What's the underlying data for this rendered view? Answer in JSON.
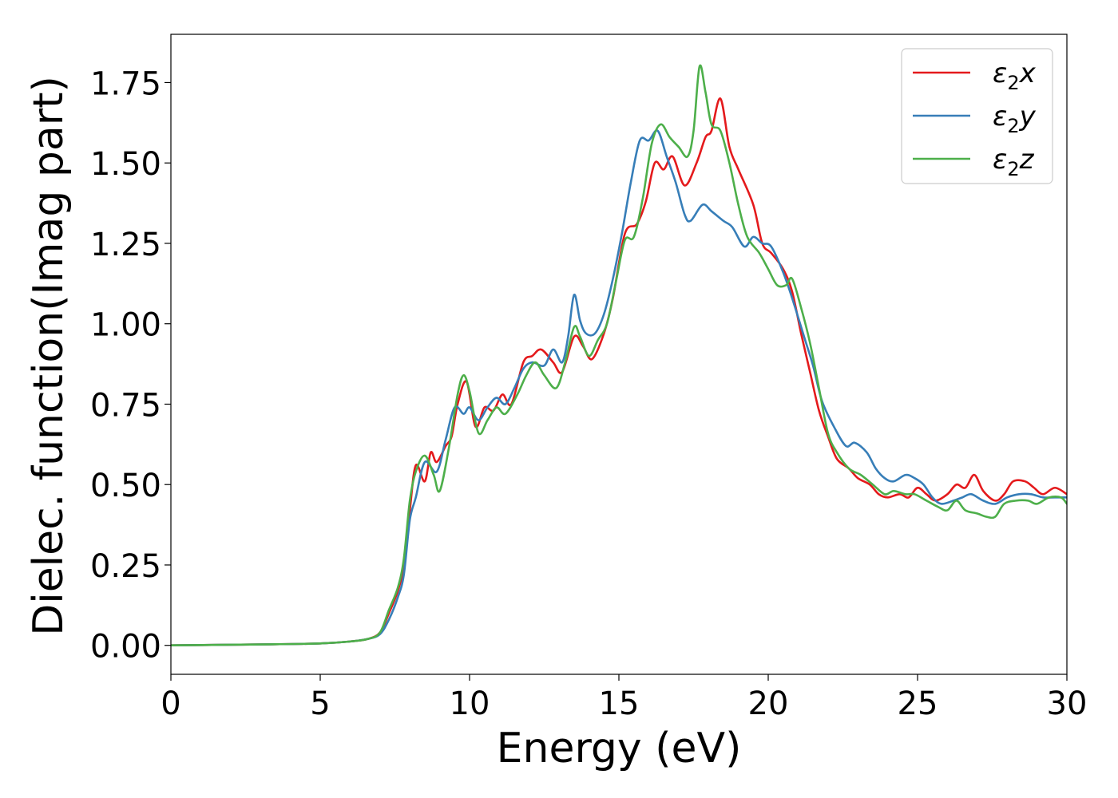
{
  "chart_data": {
    "type": "line",
    "title": "",
    "xlabel": "Energy (eV)",
    "ylabel": "Dielec. function(Imag part)",
    "xlim": [
      0,
      30
    ],
    "ylim": [
      -0.09,
      1.9
    ],
    "xticks": [
      0,
      5,
      10,
      15,
      20,
      25,
      30
    ],
    "xtick_labels": [
      "0",
      "5",
      "10",
      "15",
      "20",
      "25",
      "30"
    ],
    "yticks": [
      0,
      0.25,
      0.5,
      0.75,
      1.0,
      1.25,
      1.5,
      1.75
    ],
    "ytick_labels": [
      "0.00",
      "0.25",
      "0.50",
      "0.75",
      "1.00",
      "1.25",
      "1.50",
      "1.75"
    ],
    "grid": false,
    "legend_position": "top-right",
    "series": [
      {
        "name": "ε₂x",
        "legend": {
          "base": "ε",
          "sub": "2",
          "var": "x"
        },
        "color": "#e41a1c",
        "points": [
          [
            0,
            0.0
          ],
          [
            3,
            0.003
          ],
          [
            5,
            0.006
          ],
          [
            6,
            0.012
          ],
          [
            6.6,
            0.02
          ],
          [
            7,
            0.04
          ],
          [
            7.3,
            0.1
          ],
          [
            7.6,
            0.17
          ],
          [
            7.8,
            0.25
          ],
          [
            8.0,
            0.42
          ],
          [
            8.2,
            0.56
          ],
          [
            8.5,
            0.51
          ],
          [
            8.7,
            0.6
          ],
          [
            8.9,
            0.57
          ],
          [
            9.2,
            0.62
          ],
          [
            9.4,
            0.65
          ],
          [
            9.6,
            0.75
          ],
          [
            9.9,
            0.82
          ],
          [
            10.2,
            0.68
          ],
          [
            10.5,
            0.74
          ],
          [
            10.8,
            0.73
          ],
          [
            11.1,
            0.78
          ],
          [
            11.4,
            0.75
          ],
          [
            11.8,
            0.88
          ],
          [
            12.1,
            0.9
          ],
          [
            12.4,
            0.92
          ],
          [
            12.8,
            0.88
          ],
          [
            13.1,
            0.85
          ],
          [
            13.5,
            0.96
          ],
          [
            13.8,
            0.93
          ],
          [
            14.1,
            0.89
          ],
          [
            14.5,
            0.97
          ],
          [
            14.8,
            1.08
          ],
          [
            15.2,
            1.28
          ],
          [
            15.6,
            1.31
          ],
          [
            15.9,
            1.38
          ],
          [
            16.2,
            1.5
          ],
          [
            16.5,
            1.48
          ],
          [
            16.8,
            1.52
          ],
          [
            17.2,
            1.43
          ],
          [
            17.6,
            1.5
          ],
          [
            17.9,
            1.58
          ],
          [
            18.1,
            1.6
          ],
          [
            18.4,
            1.7
          ],
          [
            18.7,
            1.55
          ],
          [
            19.0,
            1.48
          ],
          [
            19.5,
            1.37
          ],
          [
            19.8,
            1.25
          ],
          [
            20.1,
            1.22
          ],
          [
            20.5,
            1.17
          ],
          [
            20.8,
            1.1
          ],
          [
            21.1,
            0.97
          ],
          [
            21.4,
            0.85
          ],
          [
            21.7,
            0.73
          ],
          [
            22.0,
            0.65
          ],
          [
            22.3,
            0.58
          ],
          [
            22.7,
            0.55
          ],
          [
            23.0,
            0.52
          ],
          [
            23.4,
            0.5
          ],
          [
            23.7,
            0.47
          ],
          [
            24.0,
            0.46
          ],
          [
            24.4,
            0.47
          ],
          [
            24.7,
            0.46
          ],
          [
            25.0,
            0.49
          ],
          [
            25.3,
            0.47
          ],
          [
            25.6,
            0.45
          ],
          [
            26.0,
            0.47
          ],
          [
            26.3,
            0.5
          ],
          [
            26.6,
            0.49
          ],
          [
            26.9,
            0.53
          ],
          [
            27.2,
            0.48
          ],
          [
            27.6,
            0.45
          ],
          [
            27.9,
            0.47
          ],
          [
            28.2,
            0.51
          ],
          [
            28.6,
            0.51
          ],
          [
            28.9,
            0.49
          ],
          [
            29.2,
            0.47
          ],
          [
            29.6,
            0.49
          ],
          [
            30,
            0.47
          ]
        ]
      },
      {
        "name": "ε₂y",
        "legend": {
          "base": "ε",
          "sub": "2",
          "var": "y"
        },
        "color": "#377eb8",
        "points": [
          [
            0,
            0.0
          ],
          [
            3,
            0.003
          ],
          [
            5,
            0.006
          ],
          [
            6,
            0.012
          ],
          [
            6.6,
            0.02
          ],
          [
            7,
            0.035
          ],
          [
            7.3,
            0.08
          ],
          [
            7.6,
            0.15
          ],
          [
            7.8,
            0.22
          ],
          [
            8.0,
            0.39
          ],
          [
            8.2,
            0.46
          ],
          [
            8.5,
            0.57
          ],
          [
            8.9,
            0.54
          ],
          [
            9.2,
            0.64
          ],
          [
            9.5,
            0.74
          ],
          [
            9.8,
            0.72
          ],
          [
            10.0,
            0.74
          ],
          [
            10.3,
            0.7
          ],
          [
            10.6,
            0.74
          ],
          [
            10.9,
            0.77
          ],
          [
            11.2,
            0.75
          ],
          [
            11.5,
            0.8
          ],
          [
            11.8,
            0.86
          ],
          [
            12.1,
            0.88
          ],
          [
            12.5,
            0.87
          ],
          [
            12.8,
            0.92
          ],
          [
            13.1,
            0.88
          ],
          [
            13.3,
            0.96
          ],
          [
            13.5,
            1.09
          ],
          [
            13.7,
            1.01
          ],
          [
            13.9,
            0.97
          ],
          [
            14.2,
            0.97
          ],
          [
            14.5,
            1.03
          ],
          [
            14.8,
            1.14
          ],
          [
            15.1,
            1.28
          ],
          [
            15.4,
            1.44
          ],
          [
            15.7,
            1.57
          ],
          [
            16.0,
            1.57
          ],
          [
            16.3,
            1.6
          ],
          [
            16.6,
            1.52
          ],
          [
            16.9,
            1.44
          ],
          [
            17.2,
            1.34
          ],
          [
            17.4,
            1.32
          ],
          [
            17.8,
            1.37
          ],
          [
            18.1,
            1.35
          ],
          [
            18.5,
            1.32
          ],
          [
            18.8,
            1.3
          ],
          [
            19.2,
            1.24
          ],
          [
            19.5,
            1.27
          ],
          [
            19.8,
            1.25
          ],
          [
            20.1,
            1.24
          ],
          [
            20.5,
            1.16
          ],
          [
            20.8,
            1.08
          ],
          [
            21.2,
            0.96
          ],
          [
            21.5,
            0.87
          ],
          [
            21.8,
            0.76
          ],
          [
            22.2,
            0.68
          ],
          [
            22.6,
            0.62
          ],
          [
            22.9,
            0.63
          ],
          [
            23.3,
            0.6
          ],
          [
            23.6,
            0.55
          ],
          [
            23.9,
            0.52
          ],
          [
            24.2,
            0.51
          ],
          [
            24.6,
            0.53
          ],
          [
            24.9,
            0.52
          ],
          [
            25.2,
            0.5
          ],
          [
            25.5,
            0.46
          ],
          [
            25.8,
            0.44
          ],
          [
            26.2,
            0.45
          ],
          [
            26.5,
            0.46
          ],
          [
            26.8,
            0.47
          ],
          [
            27.2,
            0.45
          ],
          [
            27.6,
            0.44
          ],
          [
            28.0,
            0.46
          ],
          [
            28.4,
            0.47
          ],
          [
            28.8,
            0.47
          ],
          [
            29.2,
            0.46
          ],
          [
            29.6,
            0.46
          ],
          [
            30,
            0.46
          ]
        ]
      },
      {
        "name": "ε₂z",
        "legend": {
          "base": "ε",
          "sub": "2",
          "var": "z"
        },
        "color": "#4daf4a",
        "points": [
          [
            0,
            0.0
          ],
          [
            3,
            0.003
          ],
          [
            5,
            0.006
          ],
          [
            6,
            0.012
          ],
          [
            6.6,
            0.02
          ],
          [
            7,
            0.04
          ],
          [
            7.3,
            0.11
          ],
          [
            7.6,
            0.18
          ],
          [
            7.8,
            0.27
          ],
          [
            8.0,
            0.45
          ],
          [
            8.2,
            0.54
          ],
          [
            8.5,
            0.59
          ],
          [
            8.8,
            0.53
          ],
          [
            9.0,
            0.48
          ],
          [
            9.3,
            0.61
          ],
          [
            9.6,
            0.78
          ],
          [
            9.8,
            0.84
          ],
          [
            10.0,
            0.79
          ],
          [
            10.3,
            0.66
          ],
          [
            10.6,
            0.7
          ],
          [
            10.9,
            0.74
          ],
          [
            11.2,
            0.72
          ],
          [
            11.6,
            0.78
          ],
          [
            11.9,
            0.84
          ],
          [
            12.2,
            0.88
          ],
          [
            12.5,
            0.84
          ],
          [
            12.9,
            0.8
          ],
          [
            13.2,
            0.88
          ],
          [
            13.5,
            0.99
          ],
          [
            13.7,
            0.96
          ],
          [
            14.0,
            0.9
          ],
          [
            14.3,
            0.95
          ],
          [
            14.6,
            1.0
          ],
          [
            14.9,
            1.13
          ],
          [
            15.2,
            1.26
          ],
          [
            15.5,
            1.27
          ],
          [
            15.8,
            1.39
          ],
          [
            16.1,
            1.56
          ],
          [
            16.4,
            1.62
          ],
          [
            16.7,
            1.58
          ],
          [
            17.0,
            1.55
          ],
          [
            17.3,
            1.52
          ],
          [
            17.5,
            1.6
          ],
          [
            17.7,
            1.8
          ],
          [
            17.9,
            1.72
          ],
          [
            18.1,
            1.62
          ],
          [
            18.4,
            1.6
          ],
          [
            18.7,
            1.5
          ],
          [
            19.0,
            1.37
          ],
          [
            19.3,
            1.27
          ],
          [
            19.7,
            1.22
          ],
          [
            20.0,
            1.17
          ],
          [
            20.3,
            1.12
          ],
          [
            20.6,
            1.12
          ],
          [
            20.8,
            1.14
          ],
          [
            21.1,
            1.05
          ],
          [
            21.4,
            0.94
          ],
          [
            21.7,
            0.8
          ],
          [
            22.0,
            0.66
          ],
          [
            22.3,
            0.6
          ],
          [
            22.7,
            0.55
          ],
          [
            23.1,
            0.53
          ],
          [
            23.5,
            0.5
          ],
          [
            23.9,
            0.47
          ],
          [
            24.2,
            0.48
          ],
          [
            24.6,
            0.47
          ],
          [
            24.9,
            0.47
          ],
          [
            25.3,
            0.45
          ],
          [
            25.7,
            0.43
          ],
          [
            26.0,
            0.42
          ],
          [
            26.3,
            0.45
          ],
          [
            26.6,
            0.42
          ],
          [
            27.0,
            0.41
          ],
          [
            27.3,
            0.4
          ],
          [
            27.6,
            0.4
          ],
          [
            27.9,
            0.44
          ],
          [
            28.3,
            0.45
          ],
          [
            28.7,
            0.45
          ],
          [
            29.0,
            0.44
          ],
          [
            29.4,
            0.46
          ],
          [
            29.8,
            0.46
          ],
          [
            30,
            0.44
          ]
        ]
      }
    ]
  }
}
